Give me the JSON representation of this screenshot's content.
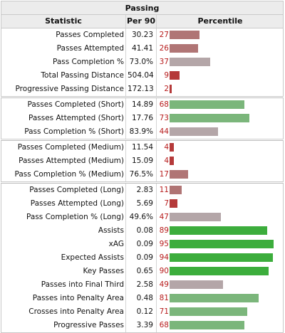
{
  "title": "Passing",
  "headers": {
    "statistic": "Statistic",
    "per90": "Per 90",
    "percentile": "Percentile"
  },
  "chart_data": {
    "type": "bar",
    "title": "Passing",
    "columns": [
      "Statistic",
      "Per 90",
      "Percentile"
    ],
    "xlim": [
      0,
      100
    ],
    "groups": [
      [
        {
          "stat": "Passes Completed",
          "per90": "30.23",
          "percentile": 27
        },
        {
          "stat": "Passes Attempted",
          "per90": "41.41",
          "percentile": 26
        },
        {
          "stat": "Pass Completion %",
          "per90": "73.0%",
          "percentile": 37
        },
        {
          "stat": "Total Passing Distance",
          "per90": "504.04",
          "percentile": 9
        },
        {
          "stat": "Progressive Passing Distance",
          "per90": "172.13",
          "percentile": 2
        }
      ],
      [
        {
          "stat": "Passes Completed (Short)",
          "per90": "14.89",
          "percentile": 68
        },
        {
          "stat": "Passes Attempted (Short)",
          "per90": "17.76",
          "percentile": 73
        },
        {
          "stat": "Pass Completion % (Short)",
          "per90": "83.9%",
          "percentile": 44
        }
      ],
      [
        {
          "stat": "Passes Completed (Medium)",
          "per90": "11.54",
          "percentile": 4
        },
        {
          "stat": "Passes Attempted (Medium)",
          "per90": "15.09",
          "percentile": 4
        },
        {
          "stat": "Pass Completion % (Medium)",
          "per90": "76.5%",
          "percentile": 17
        }
      ],
      [
        {
          "stat": "Passes Completed (Long)",
          "per90": "2.83",
          "percentile": 11
        },
        {
          "stat": "Passes Attempted (Long)",
          "per90": "5.69",
          "percentile": 7
        },
        {
          "stat": "Pass Completion % (Long)",
          "per90": "49.6%",
          "percentile": 47
        },
        {
          "stat": "Assists",
          "per90": "0.08",
          "percentile": 89
        },
        {
          "stat": "xAG",
          "per90": "0.09",
          "percentile": 95
        },
        {
          "stat": "Expected Assists",
          "per90": "0.09",
          "percentile": 94
        },
        {
          "stat": "Key Passes",
          "per90": "0.65",
          "percentile": 90
        },
        {
          "stat": "Passes into Final Third",
          "per90": "2.58",
          "percentile": 49
        },
        {
          "stat": "Passes into Penalty Area",
          "per90": "0.48",
          "percentile": 81
        },
        {
          "stat": "Crosses into Penalty Area",
          "per90": "0.12",
          "percentile": 71
        },
        {
          "stat": "Progressive Passes",
          "per90": "3.39",
          "percentile": 68
        }
      ]
    ],
    "colors": {
      "low": "#b07575",
      "mid": "#b4a6a8",
      "good": "#7bb67b",
      "elite": "#3cad3c",
      "bad": "#b53a3a",
      "percentile_text": "#b71c1c"
    }
  }
}
